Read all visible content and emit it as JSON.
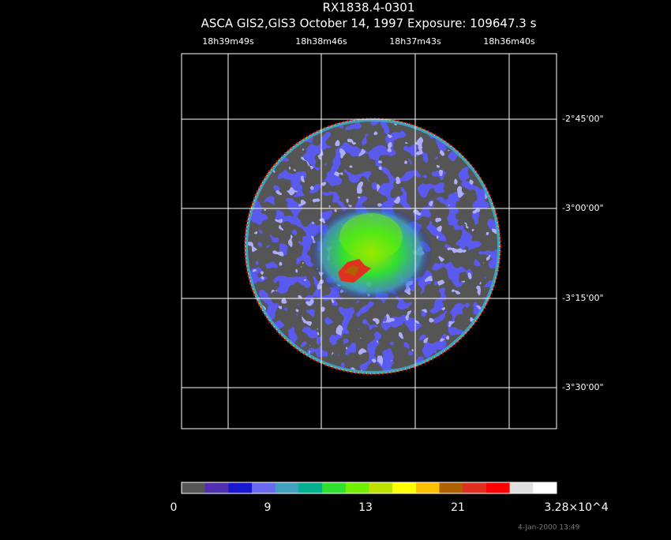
{
  "header": {
    "title": "RX1838.4-0301",
    "subtitle": "ASCA GIS2,GIS3 October 14, 1997 Exposure: 109647.3 s"
  },
  "ra_labels": [
    "18h39m49s",
    "18h38m46s",
    "18h37m43s",
    "18h36m40s"
  ],
  "dec_labels": [
    "-2°45'00\"",
    "-3°00'00\"",
    "-3°15'00\"",
    "-3°30'00\""
  ],
  "colorbar": {
    "colors": [
      "#555555",
      "#5030b0",
      "#1818d0",
      "#6a6af0",
      "#40a0c0",
      "#00b090",
      "#30e030",
      "#70f000",
      "#c0e000",
      "#ffff00",
      "#ffc000",
      "#b06000",
      "#e03020",
      "#ff0000",
      "#e0e0e0",
      "#ffffff"
    ],
    "labels": [
      "0",
      "9",
      "13",
      "21",
      "3.28×10^4"
    ]
  },
  "footer": {
    "timestamp": "4-Jan-2000 13:49"
  }
}
